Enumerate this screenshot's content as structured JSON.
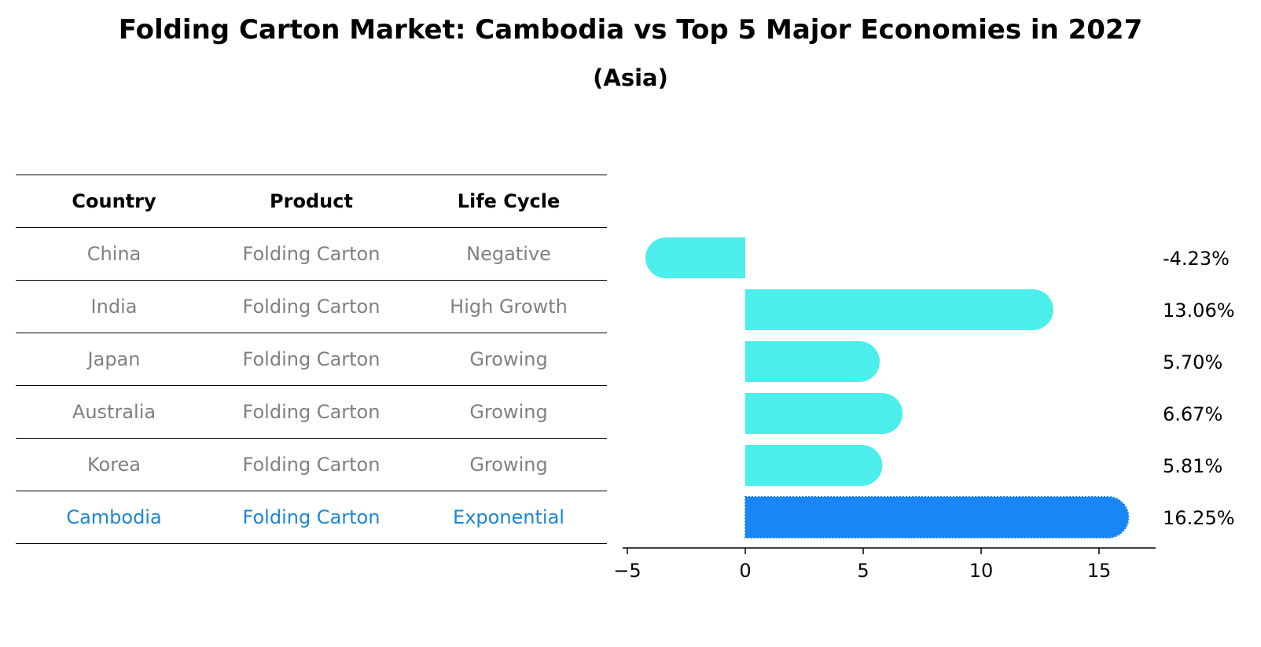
{
  "title": "Folding Carton Market: Cambodia vs Top 5 Major Economies in 2027",
  "subtitle": "(Asia)",
  "table": {
    "headers": [
      "Country",
      "Product",
      "Life Cycle"
    ],
    "rows": [
      {
        "country": "China",
        "product": "Folding Carton",
        "life_cycle": "Negative"
      },
      {
        "country": "India",
        "product": "Folding Carton",
        "life_cycle": "High Growth"
      },
      {
        "country": "Japan",
        "product": "Folding Carton",
        "life_cycle": "Growing"
      },
      {
        "country": "Australia",
        "product": "Folding Carton",
        "life_cycle": "Growing"
      },
      {
        "country": "Korea",
        "product": "Folding Carton",
        "life_cycle": "Growing"
      },
      {
        "country": "Cambodia",
        "product": "Folding Carton",
        "life_cycle": "Exponential"
      }
    ]
  },
  "colors": {
    "bar": "#4beeea",
    "highlight_bar": "#1a86f5",
    "muted_text": "#808080",
    "highlight_text": "#1a86d6"
  },
  "chart_data": {
    "type": "bar",
    "orientation": "horizontal",
    "categories": [
      "China",
      "India",
      "Japan",
      "Australia",
      "Korea",
      "Cambodia"
    ],
    "values": [
      -4.23,
      13.06,
      5.7,
      6.67,
      5.81,
      16.25
    ],
    "value_labels": [
      "-4.23%",
      "13.06%",
      "5.70%",
      "6.67%",
      "5.81%",
      "16.25%"
    ],
    "highlight_category": "Cambodia",
    "xlim": [
      -5.2,
      17.4
    ],
    "xticks": [
      -5,
      0,
      5,
      10,
      15
    ],
    "xtick_labels": [
      "−5",
      "0",
      "5",
      "10",
      "15"
    ],
    "xlabel": "",
    "ylabel": "",
    "grid": false
  }
}
